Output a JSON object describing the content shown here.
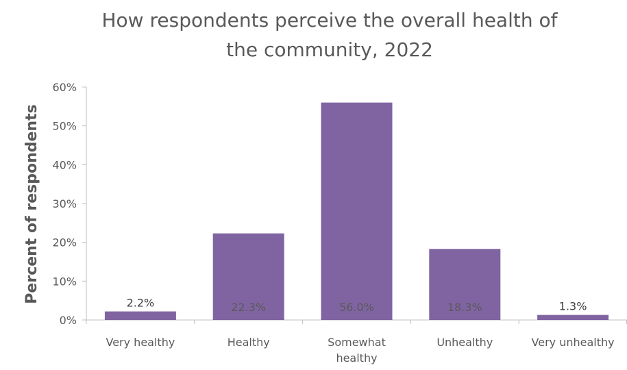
{
  "chart_data": {
    "type": "bar",
    "title_lines": [
      "How respondents perceive the overall health of",
      "the community, 2022"
    ],
    "ylabel": "Percent of respondents",
    "xlabel": "",
    "categories": [
      [
        "Very healthy"
      ],
      [
        "Healthy"
      ],
      [
        "Somewhat",
        "healthy"
      ],
      [
        "Unhealthy"
      ],
      [
        "Very unhealthy"
      ]
    ],
    "values": [
      2.2,
      22.3,
      56.0,
      18.3,
      1.3
    ],
    "data_labels": [
      "2.2%",
      "22.3%",
      "56.0%",
      "18.3%",
      "1.3%"
    ],
    "ylim": [
      0,
      60
    ],
    "yticks": [
      0,
      10,
      20,
      30,
      40,
      50,
      60
    ],
    "ytick_labels": [
      "0%",
      "10%",
      "20%",
      "30%",
      "40%",
      "50%",
      "60%"
    ],
    "bar_color": "#8064A2",
    "grid": false,
    "legend": "none"
  }
}
